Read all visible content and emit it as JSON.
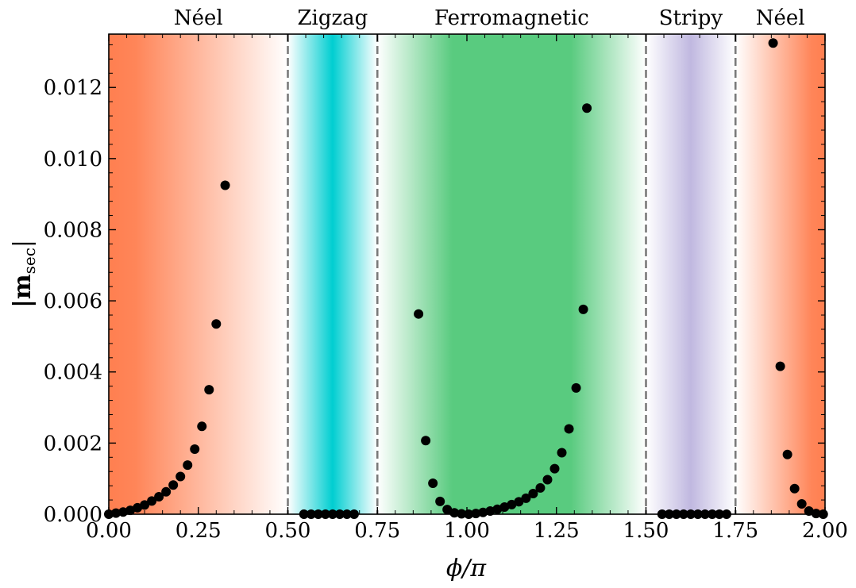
{
  "chart_data": {
    "type": "scatter",
    "xlabel": "ϕ/π",
    "ylabel_main": "|m",
    "ylabel_sub": "sec",
    "ylabel_close": "|",
    "xlim": [
      0.0,
      2.0
    ],
    "ylim": [
      0.0,
      0.0135
    ],
    "xticks": [
      {
        "value": 0.0,
        "label": "0.00"
      },
      {
        "value": 0.25,
        "label": "0.25"
      },
      {
        "value": 0.5,
        "label": "0.50"
      },
      {
        "value": 0.75,
        "label": "0.75"
      },
      {
        "value": 1.0,
        "label": "1.00"
      },
      {
        "value": 1.25,
        "label": "1.25"
      },
      {
        "value": 1.5,
        "label": "1.50"
      },
      {
        "value": 1.75,
        "label": "1.75"
      },
      {
        "value": 2.0,
        "label": "2.00"
      }
    ],
    "yticks": [
      {
        "value": 0.0,
        "label": "0.000"
      },
      {
        "value": 0.002,
        "label": "0.002"
      },
      {
        "value": 0.004,
        "label": "0.004"
      },
      {
        "value": 0.006,
        "label": "0.006"
      },
      {
        "value": 0.008,
        "label": "0.008"
      },
      {
        "value": 0.01,
        "label": "0.010"
      },
      {
        "value": 0.012,
        "label": "0.012"
      }
    ],
    "phase_boundaries": [
      0.5,
      0.75,
      1.5,
      1.75
    ],
    "phases": [
      {
        "name": "Néel",
        "start": 0.0,
        "end": 0.5,
        "center": 0.25,
        "color": "#ff7f50",
        "fade": "right"
      },
      {
        "name": "Zigzag",
        "start": 0.5,
        "end": 0.75,
        "center": 0.625,
        "color": "#00ced1",
        "fade": "both"
      },
      {
        "name": "Ferromagnetic",
        "start": 0.75,
        "end": 1.5,
        "center": 1.125,
        "color": "#50c878",
        "fade": "both"
      },
      {
        "name": "Stripy",
        "start": 1.5,
        "end": 1.75,
        "center": 1.625,
        "color": "#c0b8e0",
        "fade": "both"
      },
      {
        "name": "Néel",
        "start": 1.75,
        "end": 2.0,
        "center": 1.875,
        "color": "#ff7f50",
        "fade": "left"
      }
    ],
    "series": [
      {
        "name": "|m_sec|",
        "color": "#000000",
        "points": [
          [
            0.0,
            0.0
          ],
          [
            0.02,
            3e-05
          ],
          [
            0.04,
            6e-05
          ],
          [
            0.06,
            0.00011
          ],
          [
            0.08,
            0.00018
          ],
          [
            0.1,
            0.00026
          ],
          [
            0.12,
            0.00037
          ],
          [
            0.14,
            0.00049
          ],
          [
            0.16,
            0.00063
          ],
          [
            0.18,
            0.00082
          ],
          [
            0.2,
            0.00106
          ],
          [
            0.22,
            0.00138
          ],
          [
            0.24,
            0.00183
          ],
          [
            0.26,
            0.00247
          ],
          [
            0.28,
            0.0035
          ],
          [
            0.3,
            0.00535
          ],
          [
            0.325,
            0.00925
          ],
          [
            0.545,
            0.0
          ],
          [
            0.565,
            0.0
          ],
          [
            0.585,
            0.0
          ],
          [
            0.605,
            0.0
          ],
          [
            0.625,
            0.0
          ],
          [
            0.645,
            0.0
          ],
          [
            0.665,
            0.0
          ],
          [
            0.685,
            0.0
          ],
          [
            0.865,
            0.00563
          ],
          [
            0.885,
            0.00207
          ],
          [
            0.905,
            0.00087
          ],
          [
            0.925,
            0.00036
          ],
          [
            0.945,
            0.00013
          ],
          [
            0.965,
            4e-05
          ],
          [
            0.985,
            1e-05
          ],
          [
            1.005,
            0.0
          ],
          [
            1.025,
            2e-05
          ],
          [
            1.045,
            5e-05
          ],
          [
            1.065,
            9e-05
          ],
          [
            1.085,
            0.00014
          ],
          [
            1.105,
            0.0002
          ],
          [
            1.125,
            0.00027
          ],
          [
            1.145,
            0.00035
          ],
          [
            1.165,
            0.00045
          ],
          [
            1.185,
            0.00058
          ],
          [
            1.205,
            0.00074
          ],
          [
            1.225,
            0.00097
          ],
          [
            1.245,
            0.00128
          ],
          [
            1.265,
            0.00173
          ],
          [
            1.285,
            0.0024
          ],
          [
            1.305,
            0.00355
          ],
          [
            1.325,
            0.00576
          ],
          [
            1.335,
            0.01142
          ],
          [
            1.545,
            0.0
          ],
          [
            1.565,
            0.0
          ],
          [
            1.585,
            0.0
          ],
          [
            1.605,
            0.0
          ],
          [
            1.625,
            0.0
          ],
          [
            1.645,
            0.0
          ],
          [
            1.665,
            0.0
          ],
          [
            1.685,
            0.0
          ],
          [
            1.705,
            0.0
          ],
          [
            1.725,
            0.0
          ],
          [
            1.855,
            0.01325
          ],
          [
            1.875,
            0.00416
          ],
          [
            1.895,
            0.00168
          ],
          [
            1.915,
            0.00072
          ],
          [
            1.935,
            0.00029
          ],
          [
            1.955,
            9e-05
          ],
          [
            1.975,
            2e-05
          ],
          [
            1.995,
            0.0
          ]
        ]
      }
    ]
  }
}
